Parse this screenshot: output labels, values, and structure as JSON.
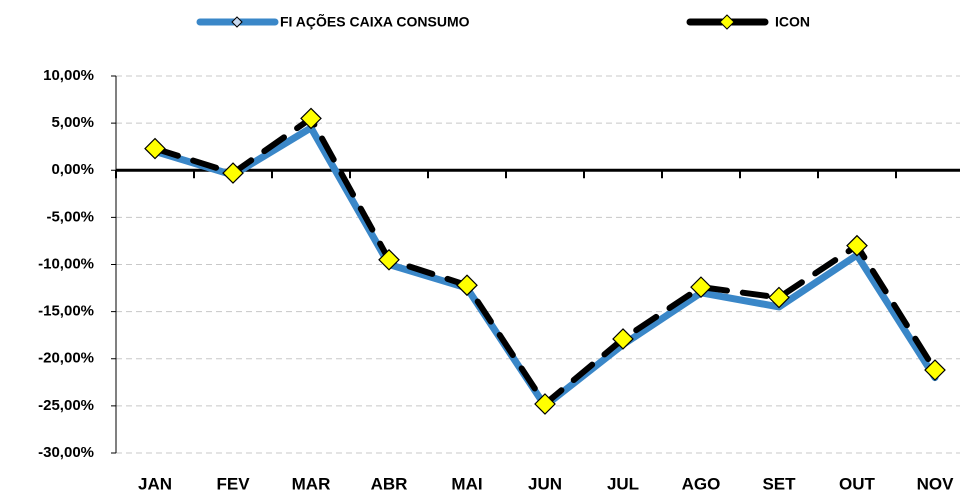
{
  "chart_data": {
    "type": "line",
    "categories": [
      "JAN",
      "FEV",
      "MAR",
      "ABR",
      "MAI",
      "JUN",
      "JUL",
      "AGO",
      "SET",
      "OUT",
      "NOV"
    ],
    "series": [
      {
        "name": "FI AÇÕES CAIXA CONSUMO",
        "color": "#3a87c8",
        "values": [
          2.0,
          -0.5,
          4.5,
          -10.0,
          -12.5,
          -25.0,
          -18.5,
          -13.0,
          -14.5,
          -9.0,
          -22.0
        ]
      },
      {
        "name": "ICON",
        "color": "#000000",
        "marker_color": "#ffff00",
        "values": [
          2.3,
          -0.3,
          5.5,
          -9.5,
          -12.2,
          -24.8,
          -17.9,
          -12.4,
          -13.5,
          -8.0,
          -21.2
        ]
      }
    ],
    "ylim": [
      -30,
      10
    ],
    "yticks": [
      {
        "value": -30,
        "label": "-30,00%"
      },
      {
        "value": -25,
        "label": "-25,00%"
      },
      {
        "value": -20,
        "label": "-20,00%"
      },
      {
        "value": -15,
        "label": "-15,00%"
      },
      {
        "value": -10,
        "label": "-10,00%"
      },
      {
        "value": -5,
        "label": "-5,00%"
      },
      {
        "value": 0,
        "label": "0,00%"
      },
      {
        "value": 5,
        "label": "5,00%"
      },
      {
        "value": 10,
        "label": "10,00%"
      }
    ],
    "grid": true,
    "legend": "top"
  }
}
